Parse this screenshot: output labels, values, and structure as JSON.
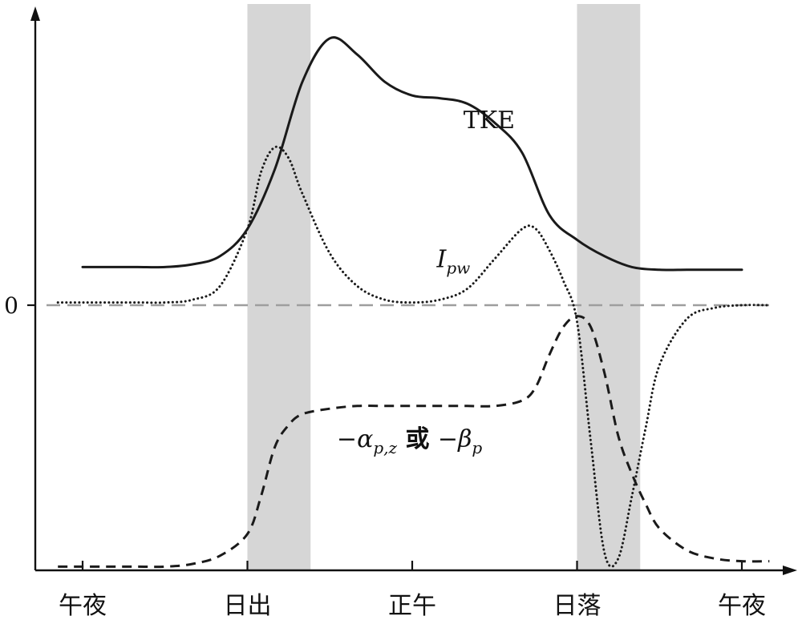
{
  "chart_data": {
    "type": "line",
    "title": "",
    "xlabel": "",
    "ylabel": "",
    "x_ticks": [
      "午夜",
      "日出",
      "正午",
      "日落",
      "午夜"
    ],
    "x_tick_hours": [
      0,
      6,
      12,
      18,
      24
    ],
    "xlim": [
      -1,
      26
    ],
    "ylim": [
      -1.0,
      1.06
    ],
    "y_ticks": [
      {
        "label": "0",
        "value": 0
      }
    ],
    "shaded_bands": [
      {
        "name": "sunrise-transition",
        "from": 6.0,
        "to": 8.3
      },
      {
        "name": "sunset-transition",
        "from": 18.0,
        "to": 20.3
      }
    ],
    "zero_line_color": "#9e9e9e",
    "band_color": "#d6d6d6",
    "series": [
      {
        "name": "TKE",
        "label_parts": [
          {
            "text": "TKE",
            "italic": false,
            "sub": false
          }
        ],
        "label_at": {
          "x": 14.8,
          "y": 0.65
        },
        "style": "solid",
        "color": "#1a1a1a",
        "x": [
          0,
          1,
          2,
          3,
          4,
          5,
          6,
          7,
          8,
          9,
          10,
          11,
          12,
          13,
          14,
          15,
          16,
          17,
          18,
          19,
          20,
          21,
          22,
          23,
          24
        ],
        "values": [
          0.14,
          0.14,
          0.14,
          0.14,
          0.15,
          0.18,
          0.28,
          0.5,
          0.82,
          0.98,
          0.92,
          0.82,
          0.77,
          0.76,
          0.74,
          0.67,
          0.56,
          0.33,
          0.24,
          0.18,
          0.14,
          0.13,
          0.13,
          0.13,
          0.13
        ]
      },
      {
        "name": "I_pw",
        "label_parts": [
          {
            "text": "I",
            "italic": true,
            "sub": false
          },
          {
            "text": "pw",
            "italic": true,
            "sub": true
          }
        ],
        "label_at": {
          "x": 13.5,
          "y": 0.14
        },
        "style": "dotted",
        "color": "#1a1a1a",
        "x": [
          -0.9,
          0,
          1,
          2,
          3,
          4,
          5,
          6,
          6.5,
          7,
          7.5,
          8,
          9,
          10,
          11,
          12,
          13,
          14,
          15,
          16,
          16.5,
          17,
          17.5,
          18,
          18.5,
          19,
          19.5,
          20,
          20.5,
          21,
          22,
          23,
          24,
          25
        ],
        "values": [
          0.01,
          0.01,
          0.01,
          0.01,
          0.01,
          0.02,
          0.07,
          0.28,
          0.49,
          0.58,
          0.54,
          0.41,
          0.19,
          0.07,
          0.02,
          0.01,
          0.02,
          0.06,
          0.17,
          0.28,
          0.28,
          0.2,
          0.09,
          -0.06,
          -0.5,
          -0.91,
          -0.93,
          -0.7,
          -0.45,
          -0.22,
          -0.05,
          -0.01,
          0.0,
          0.0
        ]
      },
      {
        "name": "-alpha_pz_or_-beta_p",
        "label_parts": [
          {
            "text": "−",
            "italic": false,
            "sub": false
          },
          {
            "text": "α",
            "italic": true,
            "sub": false
          },
          {
            "text": "p,z",
            "italic": true,
            "sub": true
          },
          {
            "text": " 或 ",
            "italic": false,
            "sub": false,
            "bold": true
          },
          {
            "text": "−",
            "italic": false,
            "sub": false
          },
          {
            "text": "β",
            "italic": true,
            "sub": false
          },
          {
            "text": "p",
            "italic": true,
            "sub": true
          }
        ],
        "label_at": {
          "x": 11.9,
          "y": -0.52
        },
        "style": "dashed",
        "color": "#1a1a1a",
        "x": [
          -0.9,
          0,
          1,
          2,
          3,
          4,
          5,
          6,
          6.5,
          7,
          7.5,
          8,
          9,
          10,
          11,
          12,
          13,
          14,
          15,
          16,
          16.5,
          17,
          17.5,
          18,
          18.5,
          19,
          19.5,
          20,
          20.5,
          21,
          22,
          23,
          24,
          25
        ],
        "values": [
          -0.96,
          -0.96,
          -0.96,
          -0.96,
          -0.96,
          -0.95,
          -0.92,
          -0.84,
          -0.7,
          -0.52,
          -0.44,
          -0.4,
          -0.38,
          -0.37,
          -0.37,
          -0.37,
          -0.37,
          -0.37,
          -0.37,
          -0.35,
          -0.3,
          -0.18,
          -0.08,
          -0.04,
          -0.08,
          -0.25,
          -0.48,
          -0.62,
          -0.73,
          -0.82,
          -0.9,
          -0.93,
          -0.94,
          -0.94
        ]
      }
    ]
  }
}
